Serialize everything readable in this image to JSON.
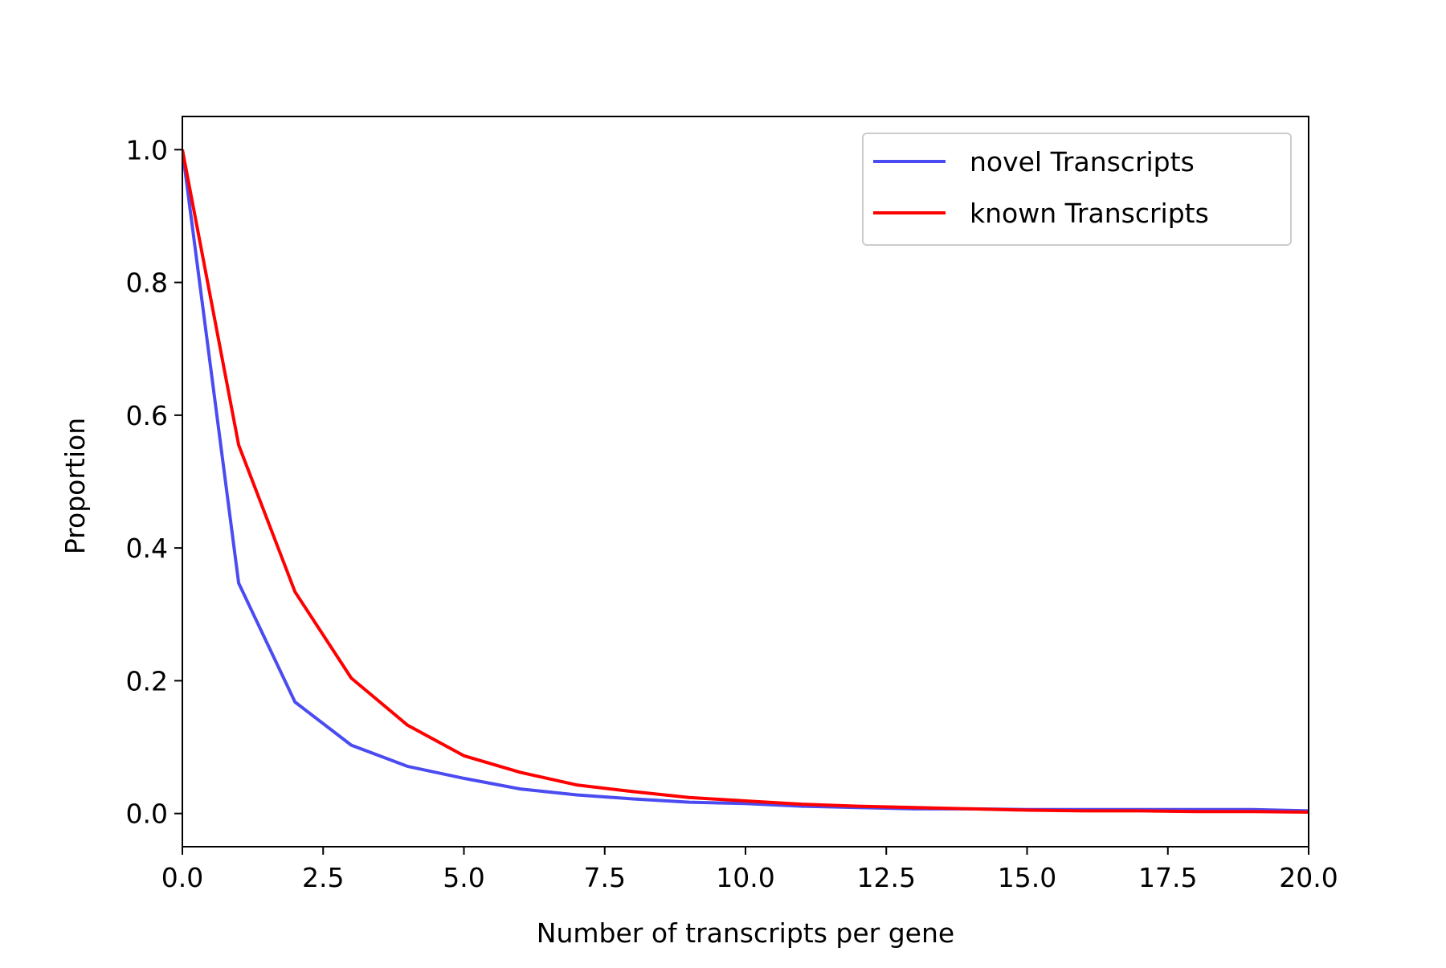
{
  "chart_data": {
    "type": "line",
    "xlabel": "Number of transcripts per gene",
    "ylabel": "Proportion",
    "xlim": [
      0,
      20
    ],
    "ylim": [
      -0.05,
      1.05
    ],
    "x_ticks": [
      "0.0",
      "2.5",
      "5.0",
      "7.5",
      "10.0",
      "12.5",
      "15.0",
      "17.5",
      "20.0"
    ],
    "y_ticks": [
      "0.0",
      "0.2",
      "0.4",
      "0.6",
      "0.8",
      "1.0"
    ],
    "grid": false,
    "legend_position": "top-right",
    "series": [
      {
        "name": "novel Transcripts",
        "color": "#4b4bf2",
        "x": [
          0,
          1,
          2,
          3,
          4,
          5,
          6,
          7,
          8,
          9,
          10,
          11,
          12,
          13,
          14,
          15,
          16,
          17,
          18,
          19,
          20
        ],
        "values": [
          1.0,
          0.347,
          0.168,
          0.103,
          0.071,
          0.053,
          0.037,
          0.028,
          0.022,
          0.017,
          0.015,
          0.011,
          0.009,
          0.007,
          0.007,
          0.006,
          0.006,
          0.006,
          0.006,
          0.006,
          0.004
        ]
      },
      {
        "name": "known Transcripts",
        "color": "#ff0000",
        "x": [
          0,
          1,
          2,
          3,
          4,
          5,
          6,
          7,
          8,
          9,
          10,
          11,
          12,
          13,
          14,
          15,
          16,
          17,
          18,
          19,
          20
        ],
        "values": [
          1.0,
          0.555,
          0.334,
          0.204,
          0.133,
          0.087,
          0.062,
          0.043,
          0.033,
          0.024,
          0.019,
          0.014,
          0.011,
          0.009,
          0.007,
          0.005,
          0.004,
          0.004,
          0.003,
          0.003,
          0.002
        ]
      }
    ]
  }
}
